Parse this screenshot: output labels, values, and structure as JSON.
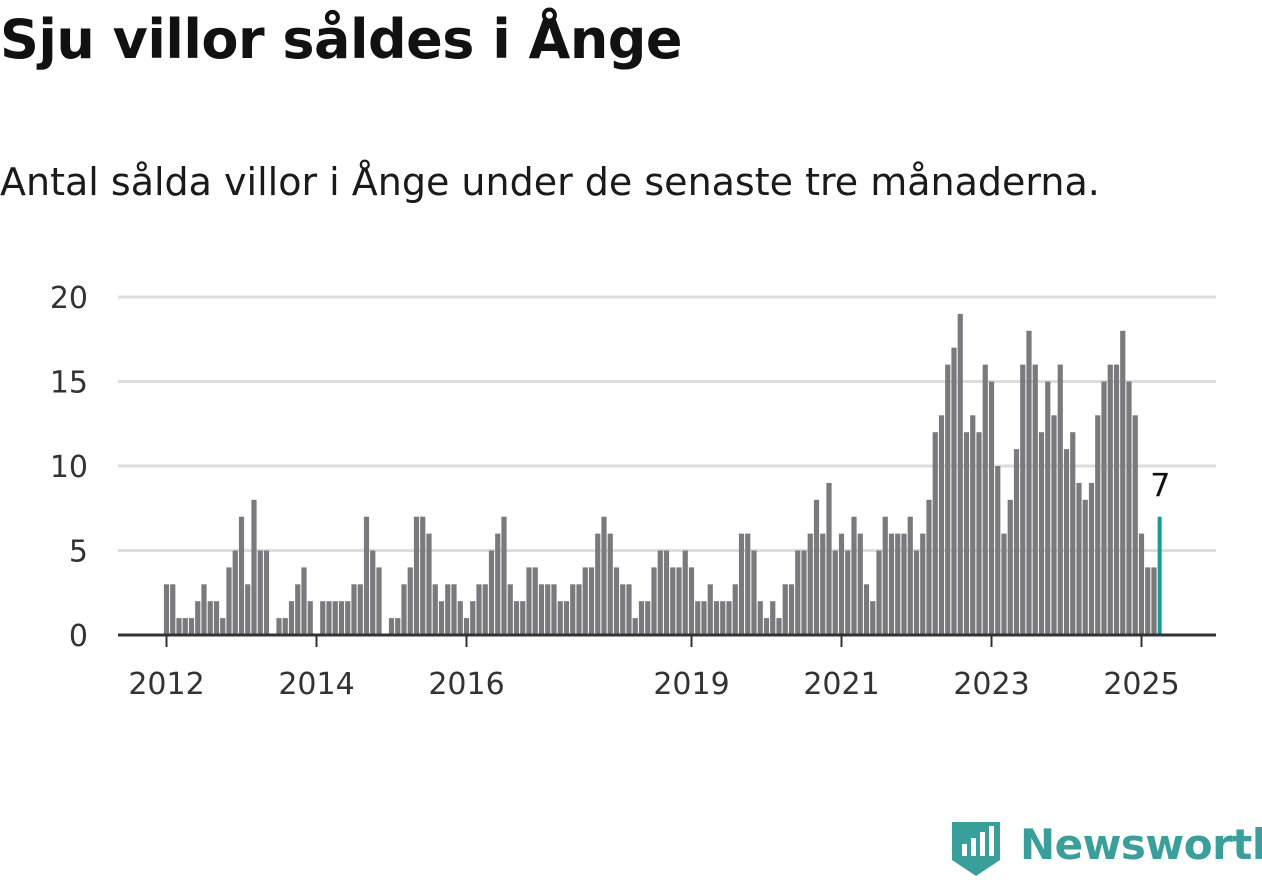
{
  "title": "Sju villor såldes i Ånge",
  "subtitle": "Antal sålda villor i Ånge under de senaste tre månaderna.",
  "brand": {
    "name": "Newsworthy",
    "color": "#3a9e9a",
    "icon": "bar-chart-badge-icon"
  },
  "colors": {
    "bar": "#7a797e",
    "highlight": "#1a9a95",
    "grid": "#dddddd",
    "axis": "#333333"
  },
  "chart_data": {
    "type": "bar",
    "x_tick_labels": [
      "2012",
      "2014",
      "2016",
      "2019",
      "2021",
      "2023",
      "2025"
    ],
    "x_tick_positions": [
      0,
      24,
      48,
      84,
      108,
      132,
      156
    ],
    "y_ticks": [
      0,
      5,
      10,
      15,
      20
    ],
    "ylim": [
      0,
      20
    ],
    "grid": true,
    "values": [
      3,
      3,
      1,
      1,
      1,
      2,
      3,
      2,
      2,
      1,
      4,
      5,
      7,
      3,
      8,
      5,
      5,
      0,
      1,
      1,
      2,
      3,
      4,
      2,
      0,
      2,
      2,
      2,
      2,
      2,
      3,
      3,
      7,
      5,
      4,
      0,
      1,
      1,
      3,
      4,
      7,
      7,
      6,
      3,
      2,
      3,
      3,
      2,
      1,
      2,
      3,
      3,
      5,
      6,
      7,
      3,
      2,
      2,
      4,
      4,
      3,
      3,
      3,
      2,
      2,
      3,
      3,
      4,
      4,
      6,
      7,
      6,
      4,
      3,
      3,
      1,
      2,
      2,
      4,
      5,
      5,
      4,
      4,
      5,
      4,
      2,
      2,
      3,
      2,
      2,
      2,
      3,
      6,
      6,
      5,
      2,
      1,
      2,
      1,
      3,
      3,
      5,
      5,
      6,
      8,
      6,
      9,
      5,
      6,
      5,
      7,
      6,
      3,
      2,
      5,
      7,
      6,
      6,
      6,
      7,
      5,
      6,
      8,
      12,
      13,
      16,
      17,
      19,
      12,
      13,
      12,
      16,
      15,
      10,
      6,
      8,
      11,
      16,
      18,
      16,
      12,
      15,
      13,
      16,
      11,
      12,
      9,
      8,
      9,
      13,
      15,
      16,
      16,
      18,
      15,
      13,
      6,
      4,
      4,
      7
    ],
    "highlight_index": 159,
    "highlight_label": "7"
  }
}
